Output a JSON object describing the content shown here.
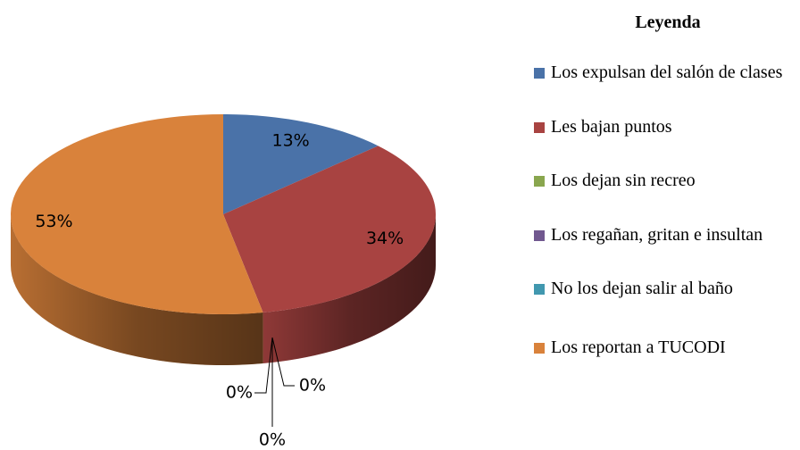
{
  "chart_data": {
    "type": "pie",
    "legend_title": "Leyenda",
    "categories": [
      "Los expulsan del salón de clases",
      "Les bajan puntos",
      "Los dejan sin recreo",
      "Los regañan, gritan e insultan",
      "No los dejan salir al baño",
      "Los reportan a TUCODI"
    ],
    "values": [
      13,
      34,
      0,
      0,
      0,
      53
    ],
    "value_labels": [
      "13%",
      "34%",
      "0%",
      "0%",
      "0%",
      "53%"
    ],
    "colors": [
      "#4a72a8",
      "#a84341",
      "#89a64e",
      "#71588f",
      "#4198af",
      "#d9823b"
    ],
    "legend": "right"
  }
}
